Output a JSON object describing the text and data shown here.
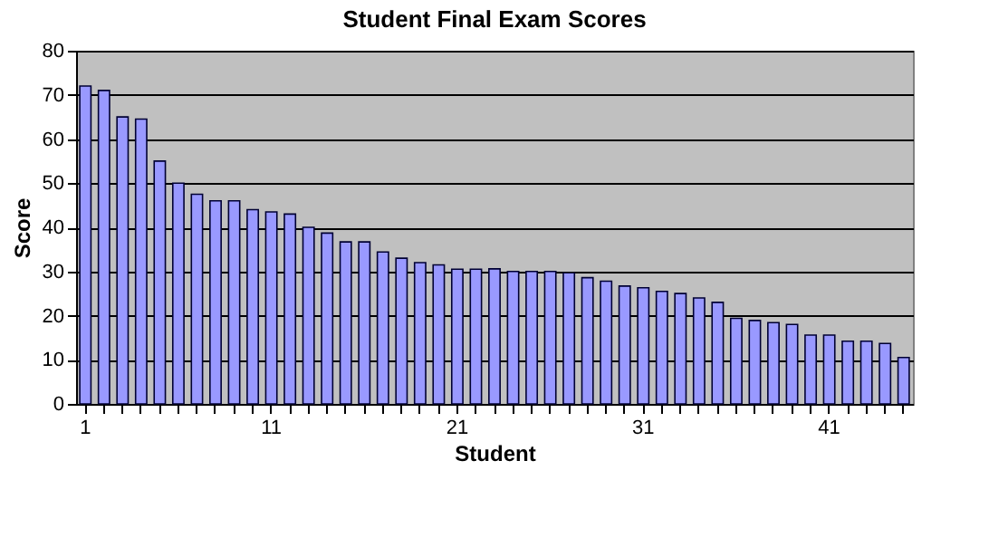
{
  "chart_data": {
    "type": "bar",
    "title": "Student Final Exam Scores",
    "xlabel": "Student",
    "ylabel": "Score",
    "categories": [
      "1",
      null,
      null,
      null,
      null,
      null,
      null,
      null,
      null,
      null,
      "11",
      null,
      null,
      null,
      null,
      null,
      null,
      null,
      null,
      null,
      "21",
      null,
      null,
      null,
      null,
      null,
      null,
      null,
      null,
      null,
      "31",
      null,
      null,
      null,
      null,
      null,
      null,
      null,
      null,
      null,
      "41",
      null,
      null,
      null,
      null
    ],
    "values": [
      72,
      71,
      65,
      64.5,
      55,
      50,
      47.5,
      46,
      46,
      44,
      43.5,
      43,
      40,
      38.7,
      36.7,
      36.7,
      34.4,
      33,
      32,
      31.5,
      30.5,
      30.5,
      30.6,
      30,
      30,
      30,
      29.7,
      28.6,
      27.8,
      26.7,
      26.3,
      25.5,
      25,
      24,
      23,
      19.4,
      18.9,
      18.4,
      18,
      15.6,
      15.6,
      14.2,
      14.2,
      13.7,
      10.5
    ],
    "color": "#9999ff",
    "ylim": [
      0,
      80
    ],
    "yticks": [
      0,
      10,
      20,
      30,
      40,
      50,
      60,
      70,
      80
    ],
    "grid": "y"
  }
}
